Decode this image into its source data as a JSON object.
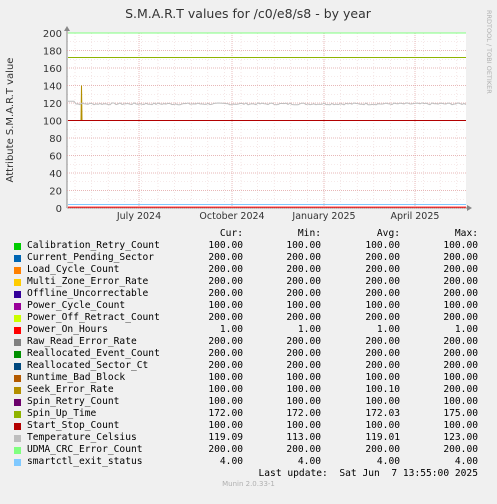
{
  "chart_data": {
    "type": "line",
    "title": "S.M.A.R.T values for /c0/e8/s8 - by year",
    "ylabel": "Attribute S.M.A.R.T value",
    "ylim": [
      0,
      200
    ],
    "yticks": [
      0,
      20,
      40,
      60,
      80,
      100,
      120,
      140,
      160,
      180,
      200
    ],
    "xticks": [
      "July 2024",
      "October 2024",
      "January 2025",
      "April 2025"
    ],
    "watermark": "RRDTOOL / TOBI OETIKER",
    "grid": true,
    "columns": [
      "Cur:",
      "Min:",
      "Avg:",
      "Max:"
    ],
    "series": [
      {
        "name": "Calibration_Retry_Count",
        "color": "#00cc00",
        "cur": "100.00",
        "min": "100.00",
        "avg": "100.00",
        "max": "100.00",
        "level": 100
      },
      {
        "name": "Current_Pending_Sector",
        "color": "#0066b3",
        "cur": "200.00",
        "min": "200.00",
        "avg": "200.00",
        "max": "200.00",
        "level": 200
      },
      {
        "name": "Load_Cycle_Count",
        "color": "#ff8000",
        "cur": "200.00",
        "min": "200.00",
        "avg": "200.00",
        "max": "200.00",
        "level": 200
      },
      {
        "name": "Multi_Zone_Error_Rate",
        "color": "#ffcc00",
        "cur": "200.00",
        "min": "200.00",
        "avg": "200.00",
        "max": "200.00",
        "level": 200
      },
      {
        "name": "Offline_Uncorrectable",
        "color": "#330099",
        "cur": "200.00",
        "min": "200.00",
        "avg": "200.00",
        "max": "200.00",
        "level": 200
      },
      {
        "name": "Power_Cycle_Count",
        "color": "#990099",
        "cur": "100.00",
        "min": "100.00",
        "avg": "100.00",
        "max": "100.00",
        "level": 100
      },
      {
        "name": "Power_Off_Retract_Count",
        "color": "#ccff00",
        "cur": "200.00",
        "min": "200.00",
        "avg": "200.00",
        "max": "200.00",
        "level": 200
      },
      {
        "name": "Power_On_Hours",
        "color": "#ff0000",
        "cur": "1.00",
        "min": "1.00",
        "avg": "1.00",
        "max": "1.00",
        "level": 1
      },
      {
        "name": "Raw_Read_Error_Rate",
        "color": "#808080",
        "cur": "200.00",
        "min": "200.00",
        "avg": "200.00",
        "max": "200.00",
        "level": 200
      },
      {
        "name": "Reallocated_Event_Count",
        "color": "#008f00",
        "cur": "200.00",
        "min": "200.00",
        "avg": "200.00",
        "max": "200.00",
        "level": 200
      },
      {
        "name": "Reallocated_Sector_Ct",
        "color": "#00487d",
        "cur": "200.00",
        "min": "200.00",
        "avg": "200.00",
        "max": "200.00",
        "level": 200
      },
      {
        "name": "Runtime_Bad_Block",
        "color": "#b35a00",
        "cur": "100.00",
        "min": "100.00",
        "avg": "100.00",
        "max": "100.00",
        "level": 100
      },
      {
        "name": "Seek_Error_Rate",
        "color": "#b38f00",
        "cur": "100.00",
        "min": "100.00",
        "avg": "100.10",
        "max": "200.00",
        "level": 100,
        "spike": 140
      },
      {
        "name": "Spin_Retry_Count",
        "color": "#6b006b",
        "cur": "100.00",
        "min": "100.00",
        "avg": "100.00",
        "max": "100.00",
        "level": 100
      },
      {
        "name": "Spin_Up_Time",
        "color": "#8fb300",
        "cur": "172.00",
        "min": "172.00",
        "avg": "172.03",
        "max": "175.00",
        "level": 172
      },
      {
        "name": "Start_Stop_Count",
        "color": "#b30000",
        "cur": "100.00",
        "min": "100.00",
        "avg": "100.00",
        "max": "100.00",
        "level": 100
      },
      {
        "name": "Temperature_Celsius",
        "color": "#bebebe",
        "cur": "119.09",
        "min": "113.00",
        "avg": "119.01",
        "max": "123.00",
        "level": 119
      },
      {
        "name": "UDMA_CRC_Error_Count",
        "color": "#80ff80",
        "cur": "200.00",
        "min": "200.00",
        "avg": "200.00",
        "max": "200.00",
        "level": 200
      },
      {
        "name": "smartctl_exit_status",
        "color": "#80c9ff",
        "cur": "4.00",
        "min": "4.00",
        "avg": "4.00",
        "max": "4.00",
        "level": 4
      }
    ]
  },
  "last_update": "Last update:  Sat Jun  7 13:55:00 2025",
  "footer": "Munin 2.0.33-1",
  "colors": {
    "background": "#f0f0f0",
    "plot_bg": "#ffffff",
    "grid_major": "#e0a0a0",
    "grid_minor": "#e8c0c0"
  }
}
